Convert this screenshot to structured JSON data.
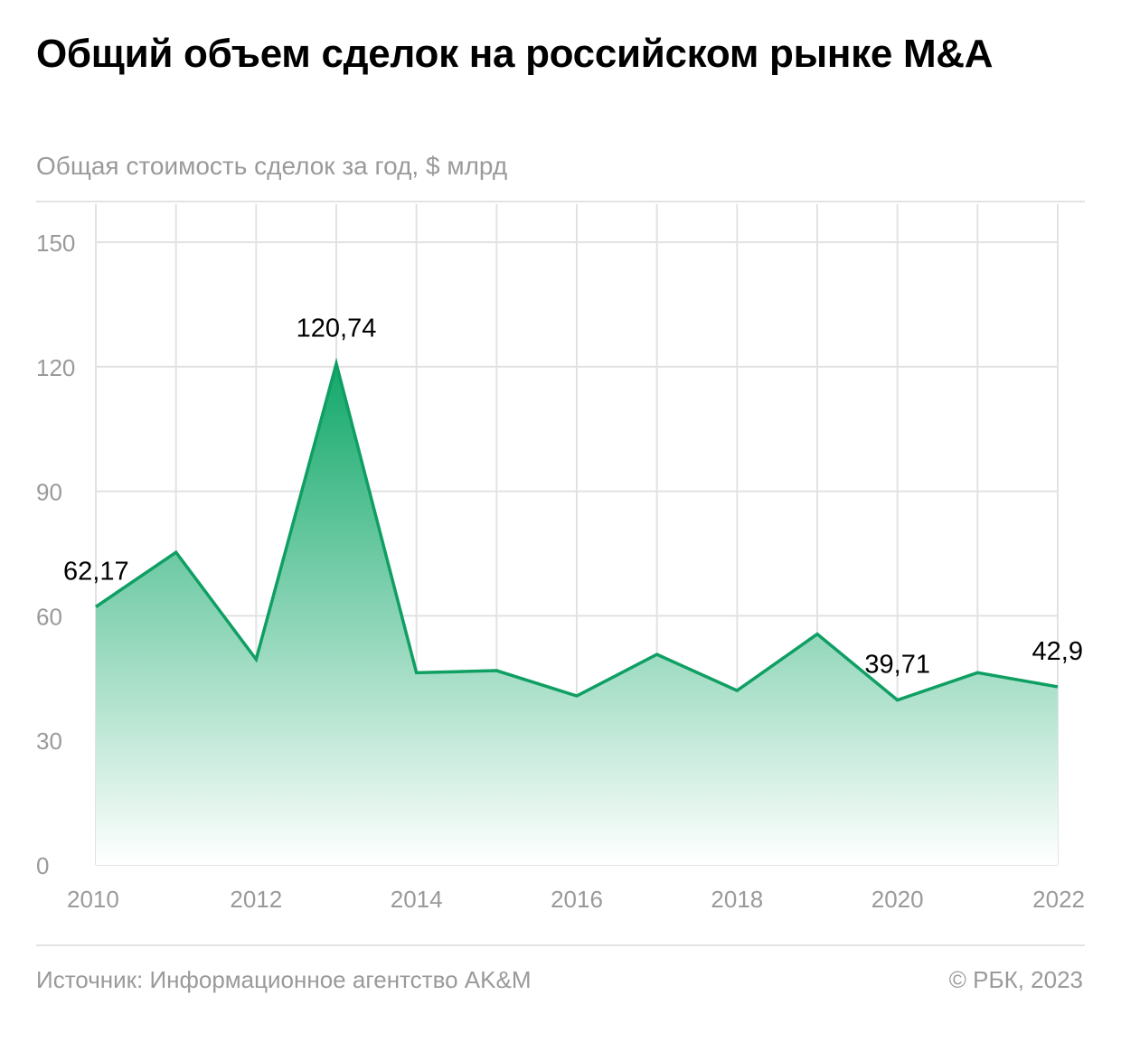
{
  "header": {
    "title": "Общий объем сделок на российском рынке M&A",
    "subtitle": "Общая стоимость сделок за год, $ млрд"
  },
  "footer": {
    "source": "Источник: Информационное агентство AK&M",
    "copyright": "© РБК, 2023"
  },
  "colors": {
    "line": "#0f9f63",
    "fill_top": "#12a86a",
    "fill_bottom": "#ffffff",
    "grid": "#e2e2e2",
    "tick_text": "#9a9a9a",
    "label_text": "#000000"
  },
  "chart_data": {
    "type": "area",
    "title": "Общий объем сделок на российском рынке M&A",
    "subtitle": "Общая стоимость сделок за год, $ млрд",
    "x": [
      2010,
      2011,
      2012,
      2013,
      2014,
      2015,
      2016,
      2017,
      2018,
      2019,
      2020,
      2021,
      2022
    ],
    "series": [
      {
        "values": [
          62.17,
          75.3,
          49.5,
          120.74,
          46.3,
          46.8,
          40.7,
          50.7,
          42.0,
          55.6,
          39.71,
          46.3,
          42.9
        ]
      }
    ],
    "ylim": [
      0,
      150
    ],
    "yticks": [
      0,
      30,
      60,
      90,
      120,
      150
    ],
    "xticks": [
      2010,
      2012,
      2014,
      2016,
      2018,
      2020,
      2022
    ],
    "grid": true,
    "data_labels": [
      {
        "x": 2010,
        "text": "62,17"
      },
      {
        "x": 2013,
        "text": "120,74"
      },
      {
        "x": 2020,
        "text": "39,71"
      },
      {
        "x": 2022,
        "text": "42,9"
      }
    ],
    "legend": "none"
  }
}
